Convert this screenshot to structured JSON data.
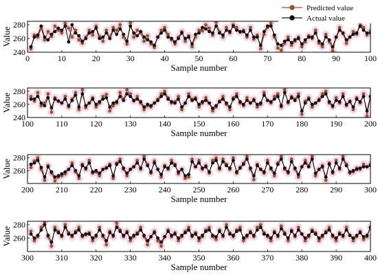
{
  "legend": {
    "position": "top-right",
    "predicted_label": "Predicted value",
    "actual_label": "Actual value"
  },
  "colors": {
    "predicted": "#b5482a",
    "predicted_marker": "#8a5a2b",
    "actual": "#111111",
    "pink_halo": "#f5c6e0"
  },
  "chart_data": [
    {
      "type": "line",
      "title": "",
      "xlabel": "Sample number",
      "ylabel": "Value",
      "xlim": [
        0,
        100
      ],
      "ylim": [
        240,
        285
      ],
      "xticks": [
        0,
        10,
        20,
        30,
        40,
        50,
        60,
        70,
        80,
        90,
        100
      ],
      "yticks": [
        240,
        260,
        280
      ],
      "x_start": 1,
      "series": [
        {
          "name": "Predicted value",
          "values": [
            245,
            265,
            262,
            275,
            258,
            270,
            263,
            278,
            272,
            268,
            282,
            275,
            262,
            272,
            258,
            253,
            262,
            272,
            265,
            278,
            263,
            256,
            272,
            262,
            276,
            272,
            280,
            262,
            252,
            283,
            262,
            272,
            268,
            256,
            264,
            252,
            247,
            262,
            272,
            276,
            266,
            258,
            252,
            262,
            270,
            256,
            264,
            248,
            262,
            272,
            271,
            280,
            275,
            265,
            284,
            270,
            262,
            276,
            268,
            280,
            276,
            269,
            272,
            262,
            276,
            259,
            265,
            245,
            266,
            276,
            282,
            262,
            246,
            243,
            253,
            262,
            250,
            256,
            262,
            248,
            255,
            264,
            260,
            272,
            253,
            248,
            266,
            255,
            242,
            262,
            276,
            267,
            253,
            262,
            270,
            266,
            283,
            276,
            265,
            271
          ]
        },
        {
          "name": "Actual value",
          "values": [
            248,
            262,
            265,
            278,
            262,
            258,
            266,
            270,
            275,
            272,
            278,
            255,
            280,
            268,
            264,
            256,
            260,
            268,
            270,
            275,
            260,
            262,
            268,
            260,
            272,
            266,
            274,
            266,
            256,
            278,
            268,
            264,
            270,
            262,
            258,
            255,
            250,
            262,
            268,
            272,
            262,
            260,
            255,
            260,
            268,
            260,
            262,
            252,
            266,
            268,
            276,
            274,
            270,
            268,
            278,
            268,
            265,
            272,
            270,
            278,
            272,
            270,
            270,
            265,
            272,
            262,
            262,
            250,
            270,
            278,
            278,
            265,
            252,
            250,
            256,
            258,
            254,
            258,
            260,
            252,
            258,
            262,
            262,
            268,
            256,
            252,
            262,
            258,
            248,
            262,
            272,
            268,
            258,
            262,
            266,
            268,
            278,
            272,
            268,
            268
          ]
        }
      ]
    },
    {
      "type": "line",
      "title": "",
      "xlabel": "Sample number",
      "ylabel": "Value",
      "xlim": [
        100,
        200
      ],
      "ylim": [
        240,
        285
      ],
      "xticks": [
        100,
        110,
        120,
        130,
        140,
        150,
        160,
        170,
        180,
        190,
        200
      ],
      "yticks": [
        240,
        260,
        280
      ],
      "x_start": 101,
      "series": [
        {
          "name": "Predicted value",
          "values": [
            272,
            265,
            278,
            258,
            262,
            276,
            248,
            270,
            265,
            262,
            272,
            256,
            268,
            278,
            252,
            282,
            255,
            262,
            270,
            256,
            262,
            272,
            275,
            250,
            258,
            262,
            278,
            268,
            282,
            276,
            265,
            272,
            262,
            252,
            258,
            256,
            262,
            268,
            276,
            280,
            270,
            262,
            264,
            272,
            252,
            262,
            276,
            268,
            270,
            256,
            262,
            270,
            262,
            250,
            256,
            265,
            272,
            260,
            252,
            270,
            276,
            262,
            258,
            270,
            262,
            268,
            256,
            260,
            278,
            266,
            262,
            272,
            276,
            256,
            282,
            262,
            272,
            268,
            276,
            245,
            265,
            270,
            256,
            262,
            268,
            276,
            280,
            262,
            256,
            270,
            262,
            276,
            258,
            265,
            252,
            270,
            262,
            276,
            242,
            272
          ]
        },
        {
          "name": "Actual value",
          "values": [
            268,
            268,
            272,
            262,
            258,
            270,
            255,
            268,
            265,
            262,
            268,
            258,
            266,
            274,
            256,
            276,
            258,
            262,
            268,
            260,
            264,
            268,
            270,
            256,
            262,
            264,
            272,
            266,
            276,
            272,
            266,
            268,
            264,
            256,
            260,
            258,
            262,
            266,
            272,
            276,
            268,
            264,
            262,
            268,
            256,
            262,
            272,
            266,
            268,
            260,
            264,
            266,
            262,
            254,
            258,
            264,
            268,
            262,
            256,
            268,
            272,
            264,
            260,
            266,
            262,
            266,
            260,
            262,
            274,
            266,
            264,
            268,
            272,
            258,
            278,
            264,
            270,
            266,
            272,
            250,
            262,
            268,
            260,
            262,
            266,
            272,
            276,
            264,
            258,
            266,
            264,
            272,
            260,
            264,
            256,
            268,
            264,
            272,
            250,
            272
          ]
        }
      ]
    },
    {
      "type": "line",
      "title": "",
      "xlabel": "Sample number",
      "ylabel": "Value",
      "xlim": [
        200,
        300
      ],
      "ylim": [
        240,
        285
      ],
      "xticks": [
        200,
        210,
        220,
        230,
        240,
        250,
        260,
        270,
        280,
        290,
        300
      ],
      "yticks": [
        260,
        280
      ],
      "x_start": 201,
      "series": [
        {
          "name": "Predicted value",
          "values": [
            265,
            275,
            280,
            262,
            245,
            268,
            256,
            244,
            250,
            252,
            255,
            262,
            272,
            258,
            248,
            270,
            262,
            276,
            256,
            258,
            252,
            262,
            265,
            270,
            248,
            272,
            278,
            262,
            252,
            262,
            266,
            276,
            262,
            282,
            270,
            256,
            275,
            262,
            250,
            268,
            262,
            276,
            270,
            255,
            262,
            248,
            250,
            278,
            266,
            276,
            262,
            268,
            256,
            276,
            280,
            262,
            278,
            270,
            262,
            280,
            256,
            265,
            272,
            282,
            262,
            246,
            270,
            262,
            256,
            276,
            262,
            252,
            272,
            282,
            262,
            256,
            278,
            262,
            250,
            266,
            276,
            268,
            282,
            252,
            262,
            268,
            245,
            272,
            256,
            276,
            262,
            282,
            270,
            256,
            258,
            264,
            262,
            270,
            266,
            270
          ]
        },
        {
          "name": "Actual value",
          "values": [
            270,
            272,
            276,
            265,
            250,
            266,
            258,
            250,
            252,
            255,
            258,
            262,
            268,
            260,
            252,
            268,
            264,
            272,
            258,
            260,
            256,
            262,
            264,
            268,
            252,
            270,
            274,
            264,
            256,
            262,
            266,
            272,
            264,
            278,
            268,
            258,
            272,
            262,
            254,
            266,
            264,
            272,
            268,
            258,
            262,
            252,
            254,
            274,
            266,
            272,
            264,
            266,
            258,
            272,
            276,
            264,
            274,
            268,
            264,
            276,
            258,
            264,
            270,
            278,
            264,
            252,
            268,
            262,
            258,
            272,
            264,
            256,
            270,
            278,
            264,
            258,
            274,
            264,
            254,
            266,
            272,
            266,
            278,
            256,
            262,
            266,
            250,
            270,
            258,
            272,
            264,
            278,
            268,
            258,
            260,
            262,
            264,
            266,
            266,
            268
          ]
        }
      ]
    },
    {
      "type": "line",
      "title": "",
      "xlabel": "Sample number",
      "ylabel": "Value",
      "xlim": [
        300,
        400
      ],
      "ylim": [
        240,
        285
      ],
      "xticks": [
        300,
        310,
        320,
        330,
        340,
        350,
        360,
        370,
        380,
        390,
        400
      ],
      "yticks": [
        260,
        280
      ],
      "x_start": 301,
      "series": [
        {
          "name": "Predicted value",
          "values": [
            270,
            256,
            262,
            276,
            284,
            262,
            248,
            276,
            270,
            262,
            280,
            268,
            262,
            270,
            276,
            262,
            265,
            268,
            256,
            262,
            276,
            262,
            250,
            270,
            262,
            282,
            272,
            262,
            270,
            256,
            262,
            268,
            276,
            262,
            250,
            262,
            270,
            256,
            248,
            262,
            272,
            262,
            268,
            256,
            262,
            270,
            276,
            262,
            268,
            256,
            262,
            272,
            276,
            262,
            258,
            272,
            262,
            280,
            268,
            262,
            272,
            276,
            256,
            262,
            270,
            262,
            276,
            280,
            268,
            262,
            256,
            270,
            262,
            278,
            268,
            256,
            272,
            262,
            276,
            266,
            256,
            262,
            272,
            268,
            256,
            262,
            270,
            276,
            262,
            256,
            268,
            262,
            276,
            264,
            256,
            262,
            270,
            258,
            262,
            276
          ]
        },
        {
          "name": "Actual value",
          "values": [
            266,
            260,
            264,
            272,
            280,
            264,
            254,
            272,
            268,
            264,
            276,
            266,
            264,
            268,
            272,
            264,
            266,
            266,
            260,
            264,
            272,
            264,
            256,
            268,
            264,
            276,
            270,
            264,
            268,
            260,
            264,
            266,
            272,
            264,
            256,
            262,
            268,
            260,
            254,
            262,
            270,
            264,
            266,
            260,
            264,
            268,
            272,
            264,
            266,
            260,
            264,
            270,
            272,
            264,
            262,
            270,
            264,
            276,
            266,
            264,
            270,
            272,
            260,
            264,
            268,
            264,
            272,
            276,
            266,
            264,
            260,
            268,
            264,
            274,
            266,
            260,
            270,
            264,
            272,
            266,
            260,
            264,
            270,
            266,
            260,
            264,
            268,
            272,
            264,
            260,
            266,
            264,
            272,
            264,
            260,
            264,
            268,
            262,
            264,
            276
          ]
        }
      ]
    }
  ]
}
